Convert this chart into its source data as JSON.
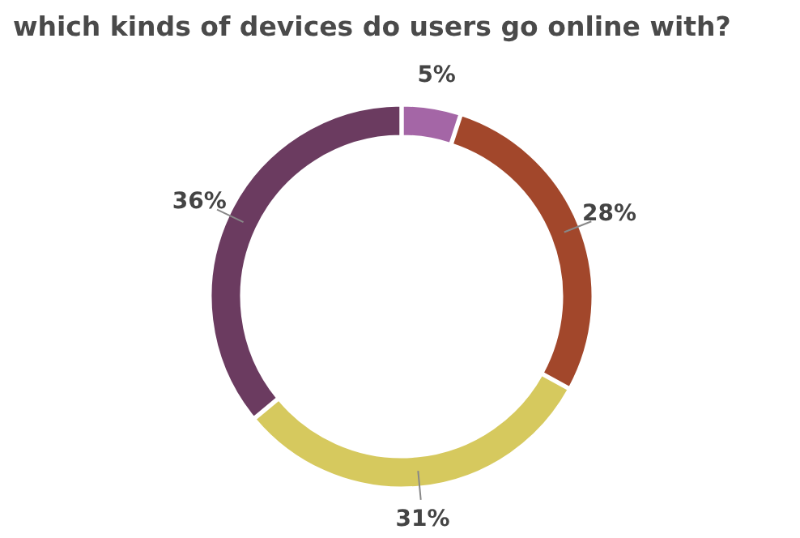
{
  "chart_data": {
    "type": "donut",
    "title": "which kinds of devices do users go online with?",
    "categories": [
      null,
      null,
      null,
      null
    ],
    "values": [
      5,
      28,
      31,
      36
    ],
    "colors": [
      "#a466a6",
      "#a2472b",
      "#d6c95e",
      "#6b3b60"
    ],
    "value_labels": [
      "5%",
      "28%",
      "31%",
      "36%"
    ]
  }
}
